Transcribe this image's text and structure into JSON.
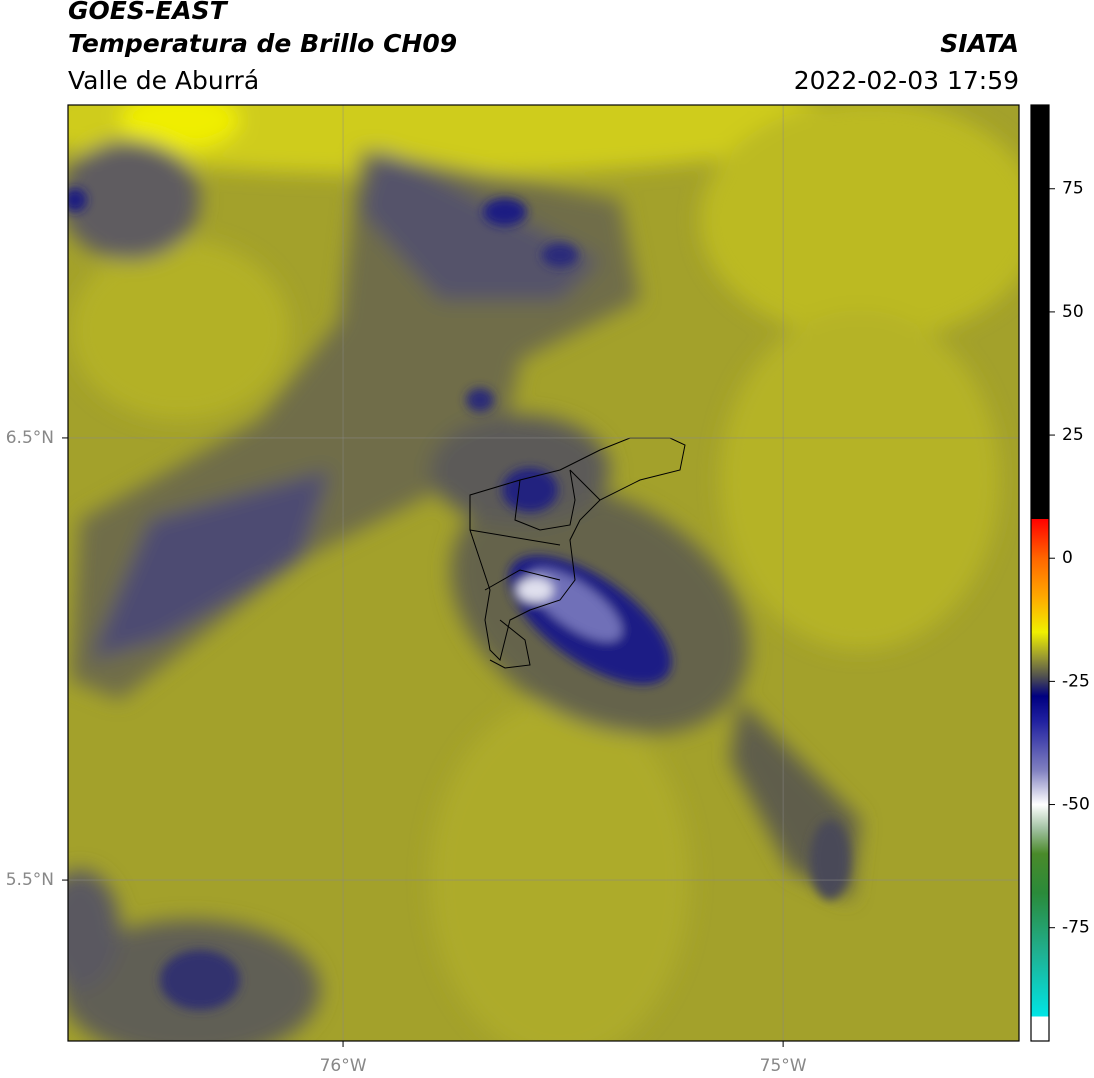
{
  "chart_data": {
    "type": "map",
    "title": "GOES-EAST",
    "subtitle": "Temperatura de Brillo CH09",
    "region": "Valle de Aburrá",
    "source": "SIATA",
    "datetime": "2022-02-03 17:59",
    "xlim": [
      -76.625,
      -74.464
    ],
    "ylim": [
      5.136,
      7.253
    ],
    "xticks": [
      {
        "value": -76,
        "label": "76°W"
      },
      {
        "value": -75,
        "label": "75°W"
      }
    ],
    "yticks": [
      {
        "value": 6.5,
        "label": "6.5°N"
      },
      {
        "value": 5.5,
        "label": "5.5°N"
      }
    ],
    "grid": true,
    "colorbar": {
      "lim": [
        -98,
        92
      ],
      "ticks": [
        75,
        50,
        25,
        0,
        -25,
        -50,
        -75
      ],
      "stops": [
        {
          "value": -98,
          "color": "#ffffff"
        },
        {
          "value": -93,
          "color": "#ffffff"
        },
        {
          "value": -93,
          "color": "#00e5e5"
        },
        {
          "value": -80,
          "color": "#20b090"
        },
        {
          "value": -68,
          "color": "#2a8a3a"
        },
        {
          "value": -60,
          "color": "#4a8a2a"
        },
        {
          "value": -55,
          "color": "#a0c0a0"
        },
        {
          "value": -50,
          "color": "#ffffff"
        },
        {
          "value": -43,
          "color": "#8080c0"
        },
        {
          "value": -33,
          "color": "#2020a0"
        },
        {
          "value": -28,
          "color": "#000080"
        },
        {
          "value": -24,
          "color": "#505050"
        },
        {
          "value": -20,
          "color": "#9a9a30"
        },
        {
          "value": -15,
          "color": "#f0f000"
        },
        {
          "value": -8,
          "color": "#ffaa00"
        },
        {
          "value": 0,
          "color": "#ff6600"
        },
        {
          "value": 8,
          "color": "#ff0000"
        },
        {
          "value": 8,
          "color": "#000000"
        },
        {
          "value": 92,
          "color": "#000000"
        }
      ]
    }
  }
}
